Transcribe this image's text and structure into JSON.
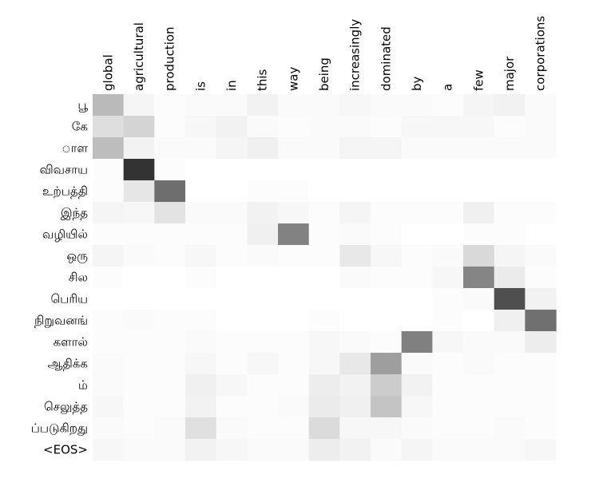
{
  "chart_data": {
    "type": "heatmap",
    "colormap": "grayscale (0 = white, 1 = black)",
    "x_labels": [
      "global",
      "agricultural",
      "production",
      "is",
      "in",
      "this",
      "way",
      "being",
      "increasingly",
      "dominated",
      "by",
      "a",
      "few",
      "major",
      "corporations"
    ],
    "y_labels": [
      "பூ",
      "கே",
      "◌ாள",
      "விவசாய",
      "உற்பத்தி",
      "இந்த",
      "வழியில்",
      "ஒரு",
      "சில",
      "பெரிய",
      "நிறுவனங்",
      "களால்",
      "ஆதிக்க",
      "ம்",
      "செலுத்த",
      "ப்படுகிறது",
      "<EOS>"
    ],
    "values": [
      [
        0.27,
        0.04,
        0.01,
        0.02,
        0.02,
        0.05,
        0.02,
        0.02,
        0.03,
        0.02,
        0.02,
        0.01,
        0.04,
        0.05,
        0.02
      ],
      [
        0.13,
        0.17,
        0.01,
        0.03,
        0.05,
        0.02,
        0.01,
        0.02,
        0.02,
        0.01,
        0.03,
        0.03,
        0.03,
        0.01,
        0.02
      ],
      [
        0.26,
        0.05,
        0.02,
        0.02,
        0.04,
        0.06,
        0.02,
        0.02,
        0.04,
        0.04,
        0.02,
        0.02,
        0.02,
        0.02,
        0.02
      ],
      [
        0.01,
        0.8,
        0.01,
        0.0,
        0.0,
        0.0,
        0.0,
        0.0,
        0.0,
        0.0,
        0.0,
        0.0,
        0.0,
        0.0,
        0.0
      ],
      [
        0.01,
        0.1,
        0.57,
        0.0,
        0.0,
        0.01,
        0.01,
        0.0,
        0.0,
        0.0,
        0.0,
        0.0,
        0.0,
        0.0,
        0.0
      ],
      [
        0.04,
        0.03,
        0.11,
        0.02,
        0.02,
        0.05,
        0.03,
        0.01,
        0.04,
        0.01,
        0.01,
        0.01,
        0.06,
        0.01,
        0.01
      ],
      [
        0.01,
        0.01,
        0.01,
        0.01,
        0.01,
        0.06,
        0.49,
        0.01,
        0.02,
        0.01,
        0.0,
        0.0,
        0.01,
        0.01,
        0.0
      ],
      [
        0.04,
        0.02,
        0.01,
        0.03,
        0.01,
        0.02,
        0.01,
        0.01,
        0.09,
        0.03,
        0.01,
        0.02,
        0.15,
        0.04,
        0.02
      ],
      [
        0.01,
        0.0,
        0.0,
        0.01,
        0.0,
        0.0,
        0.0,
        0.0,
        0.02,
        0.01,
        0.01,
        0.03,
        0.48,
        0.08,
        0.01
      ],
      [
        0.0,
        0.0,
        0.0,
        0.0,
        0.0,
        0.0,
        0.0,
        0.0,
        0.0,
        0.0,
        0.0,
        0.01,
        0.02,
        0.69,
        0.05
      ],
      [
        0.01,
        0.02,
        0.01,
        0.01,
        0.0,
        0.0,
        0.0,
        0.01,
        0.0,
        0.0,
        0.0,
        0.01,
        0.0,
        0.06,
        0.56
      ],
      [
        0.01,
        0.01,
        0.01,
        0.02,
        0.01,
        0.01,
        0.01,
        0.03,
        0.02,
        0.01,
        0.5,
        0.03,
        0.02,
        0.02,
        0.07
      ],
      [
        0.02,
        0.01,
        0.01,
        0.03,
        0.01,
        0.03,
        0.01,
        0.03,
        0.09,
        0.38,
        0.02,
        0.01,
        0.02,
        0.01,
        0.01
      ],
      [
        0.02,
        0.01,
        0.01,
        0.06,
        0.03,
        0.01,
        0.01,
        0.07,
        0.05,
        0.2,
        0.05,
        0.01,
        0.01,
        0.01,
        0.01
      ],
      [
        0.03,
        0.01,
        0.01,
        0.05,
        0.01,
        0.01,
        0.02,
        0.08,
        0.06,
        0.23,
        0.03,
        0.01,
        0.01,
        0.01,
        0.01
      ],
      [
        0.02,
        0.01,
        0.02,
        0.12,
        0.02,
        0.01,
        0.01,
        0.14,
        0.03,
        0.03,
        0.02,
        0.01,
        0.01,
        0.02,
        0.01
      ],
      [
        0.03,
        0.02,
        0.02,
        0.05,
        0.03,
        0.02,
        0.02,
        0.07,
        0.05,
        0.02,
        0.04,
        0.02,
        0.02,
        0.02,
        0.03
      ]
    ],
    "title": "",
    "xlabel": "",
    "ylabel": "",
    "x_tick_position": "top",
    "grid": false,
    "legend": "none"
  }
}
